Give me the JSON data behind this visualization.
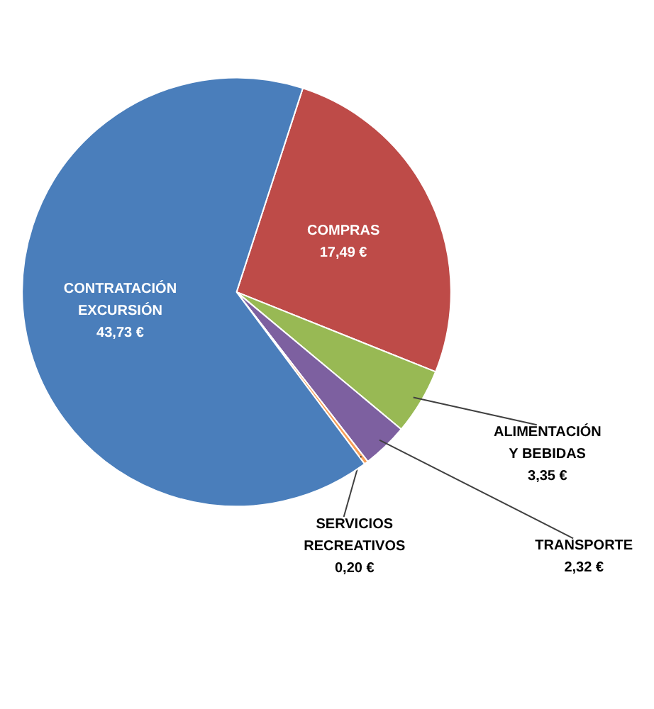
{
  "chart_data": {
    "type": "pie",
    "categories": [
      "COMPRAS",
      "ALIMENTACIÓN\nY BEBIDAS",
      "TRANSPORTE",
      "SERVICIOS\nRECREATIVOS",
      "CONTRATACIÓN\nEXCURSIÓN"
    ],
    "values": [
      17.49,
      3.35,
      2.32,
      0.2,
      43.73
    ],
    "value_labels": [
      "17,49 €",
      "3,35 €",
      "2,32 €",
      "0,20 €",
      "43,73 €"
    ],
    "colors": [
      "#be4b48",
      "#98b954",
      "#7d60a0",
      "#f59d56",
      "#4a7ebb"
    ]
  }
}
